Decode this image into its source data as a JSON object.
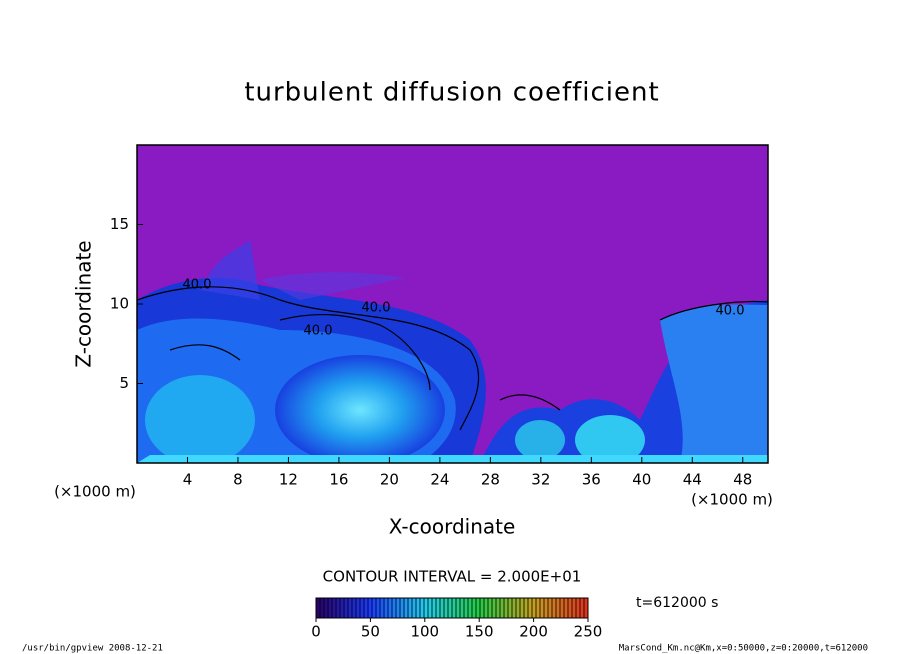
{
  "chart_data": {
    "type": "contour",
    "title": "turbulent diffusion coefficient",
    "x_label": "X-coordinate",
    "y_label": "Z-coordinate",
    "x_unit": "(×1000 m)",
    "xlim": [
      0,
      50
    ],
    "xticks": [
      4,
      8,
      12,
      16,
      20,
      24,
      28,
      32,
      36,
      40,
      44,
      48
    ],
    "ylim": [
      0,
      20
    ],
    "yticks": [
      5,
      10,
      15
    ],
    "contour_labels": [
      "40.0",
      "40.0",
      "40.0",
      "40.0"
    ],
    "contour_interval": "CONTOUR INTERVAL = 2.000E+01",
    "time_label": "t=612000 s",
    "colorbar": {
      "lim": [
        0,
        250
      ],
      "ticks": [
        0,
        50,
        100,
        150,
        200,
        250
      ]
    },
    "footer_left": "/usr/bin/gpview   2008-12-21",
    "footer_right": "MarsCond_Km.nc@Km,x=0:50000,z=0:20000,t=612000",
    "background_color": "#8a1ac2"
  }
}
